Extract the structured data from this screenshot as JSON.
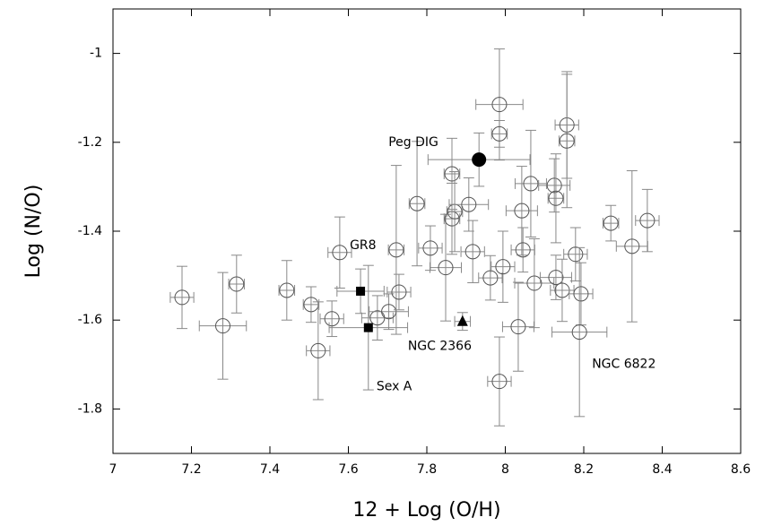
{
  "chart_data": {
    "type": "scatter",
    "x_label": "12 + Log (O/H)",
    "y_label": "Log (N/O)",
    "xlim": [
      7,
      8.6
    ],
    "ylim": [
      -1.9,
      -0.9
    ],
    "xticks": [
      7,
      7.2,
      7.4,
      7.6,
      7.8,
      8,
      8.2,
      8.4,
      8.6
    ],
    "yticks": [
      -1.8,
      -1.6,
      -1.4,
      -1.2,
      -1
    ],
    "series": [
      {
        "marker": "circle-open",
        "color": "#555555",
        "x": [
          7.176,
          7.28,
          7.315,
          7.443,
          7.505,
          7.523,
          7.558,
          7.578,
          7.674,
          7.703,
          7.722,
          7.729,
          7.775,
          7.809,
          7.848,
          7.864,
          7.864,
          7.871,
          7.907,
          7.917,
          7.962,
          7.985,
          7.985,
          7.985,
          7.994,
          8.033,
          8.042,
          8.045,
          8.065,
          8.074,
          8.125,
          8.129,
          8.129,
          8.145,
          8.157,
          8.157,
          8.179,
          8.193,
          8.269,
          8.323,
          8.362
        ],
        "y": [
          -1.549,
          -1.613,
          -1.519,
          -1.533,
          -1.565,
          -1.669,
          -1.597,
          -1.448,
          -1.595,
          -1.581,
          -1.442,
          -1.537,
          -1.338,
          -1.438,
          -1.482,
          -1.271,
          -1.372,
          -1.356,
          -1.34,
          -1.446,
          -1.505,
          -1.115,
          -1.181,
          -1.738,
          -1.48,
          -1.615,
          -1.354,
          -1.442,
          -1.293,
          -1.517,
          -1.297,
          -1.326,
          -1.504,
          -1.533,
          -1.161,
          -1.197,
          -1.452,
          -1.541,
          -1.382,
          -1.434,
          -1.376
        ],
        "xerr": [
          0.03,
          0.06,
          0.02,
          0.02,
          0.02,
          0.03,
          0.03,
          0.03,
          0.04,
          0.05,
          0.02,
          0.03,
          0.02,
          0.03,
          0.04,
          0.02,
          0.02,
          0.02,
          0.05,
          0.03,
          0.03,
          0.06,
          0.02,
          0.03,
          0.03,
          0.04,
          0.04,
          0.03,
          0.04,
          0.05,
          0.04,
          0.02,
          0.04,
          0.03,
          0.03,
          0.02,
          0.03,
          0.03,
          0.02,
          0.04,
          0.03
        ],
        "yerr": [
          0.07,
          0.12,
          0.065,
          0.067,
          0.04,
          0.11,
          0.04,
          0.08,
          0.05,
          0.04,
          0.19,
          0.04,
          0.14,
          0.05,
          0.12,
          0.08,
          0.08,
          0.09,
          0.06,
          0.07,
          0.05,
          0.125,
          0.03,
          0.1,
          0.08,
          0.1,
          0.1,
          0.05,
          0.12,
          0.1,
          0.06,
          0.1,
          0.05,
          0.07,
          0.12,
          0.15,
          0.06,
          0.07,
          0.04,
          0.17,
          0.07
        ]
      },
      {
        "marker": "circle-open",
        "color": "#555555",
        "label": "NGC 6822",
        "x": [
          8.189
        ],
        "y": [
          -1.627
        ],
        "xerr": [
          0.07
        ],
        "yerr": [
          0.19
        ]
      },
      {
        "marker": "circle",
        "color": "#000000",
        "label": "Peg DIG",
        "x": [
          7.933
        ],
        "y": [
          -1.239
        ],
        "xerr": [
          0.13
        ],
        "yerr": [
          0.06
        ]
      },
      {
        "marker": "square",
        "color": "#000000",
        "label": "GR8",
        "x": [
          7.631
        ],
        "y": [
          -1.535
        ],
        "xerr": [
          0.06
        ],
        "yerr": [
          0.05
        ]
      },
      {
        "marker": "square",
        "color": "#000000",
        "label": "Sex A",
        "x": [
          7.651
        ],
        "y": [
          -1.617
        ],
        "xerr": [
          0.1
        ],
        "yerr": [
          0.14
        ]
      },
      {
        "marker": "triangle",
        "color": "#000000",
        "label": "NGC 2366",
        "x": [
          7.891
        ],
        "y": [
          -1.603
        ],
        "xerr": [
          0.02
        ],
        "yerr": [
          0.02
        ]
      }
    ]
  }
}
